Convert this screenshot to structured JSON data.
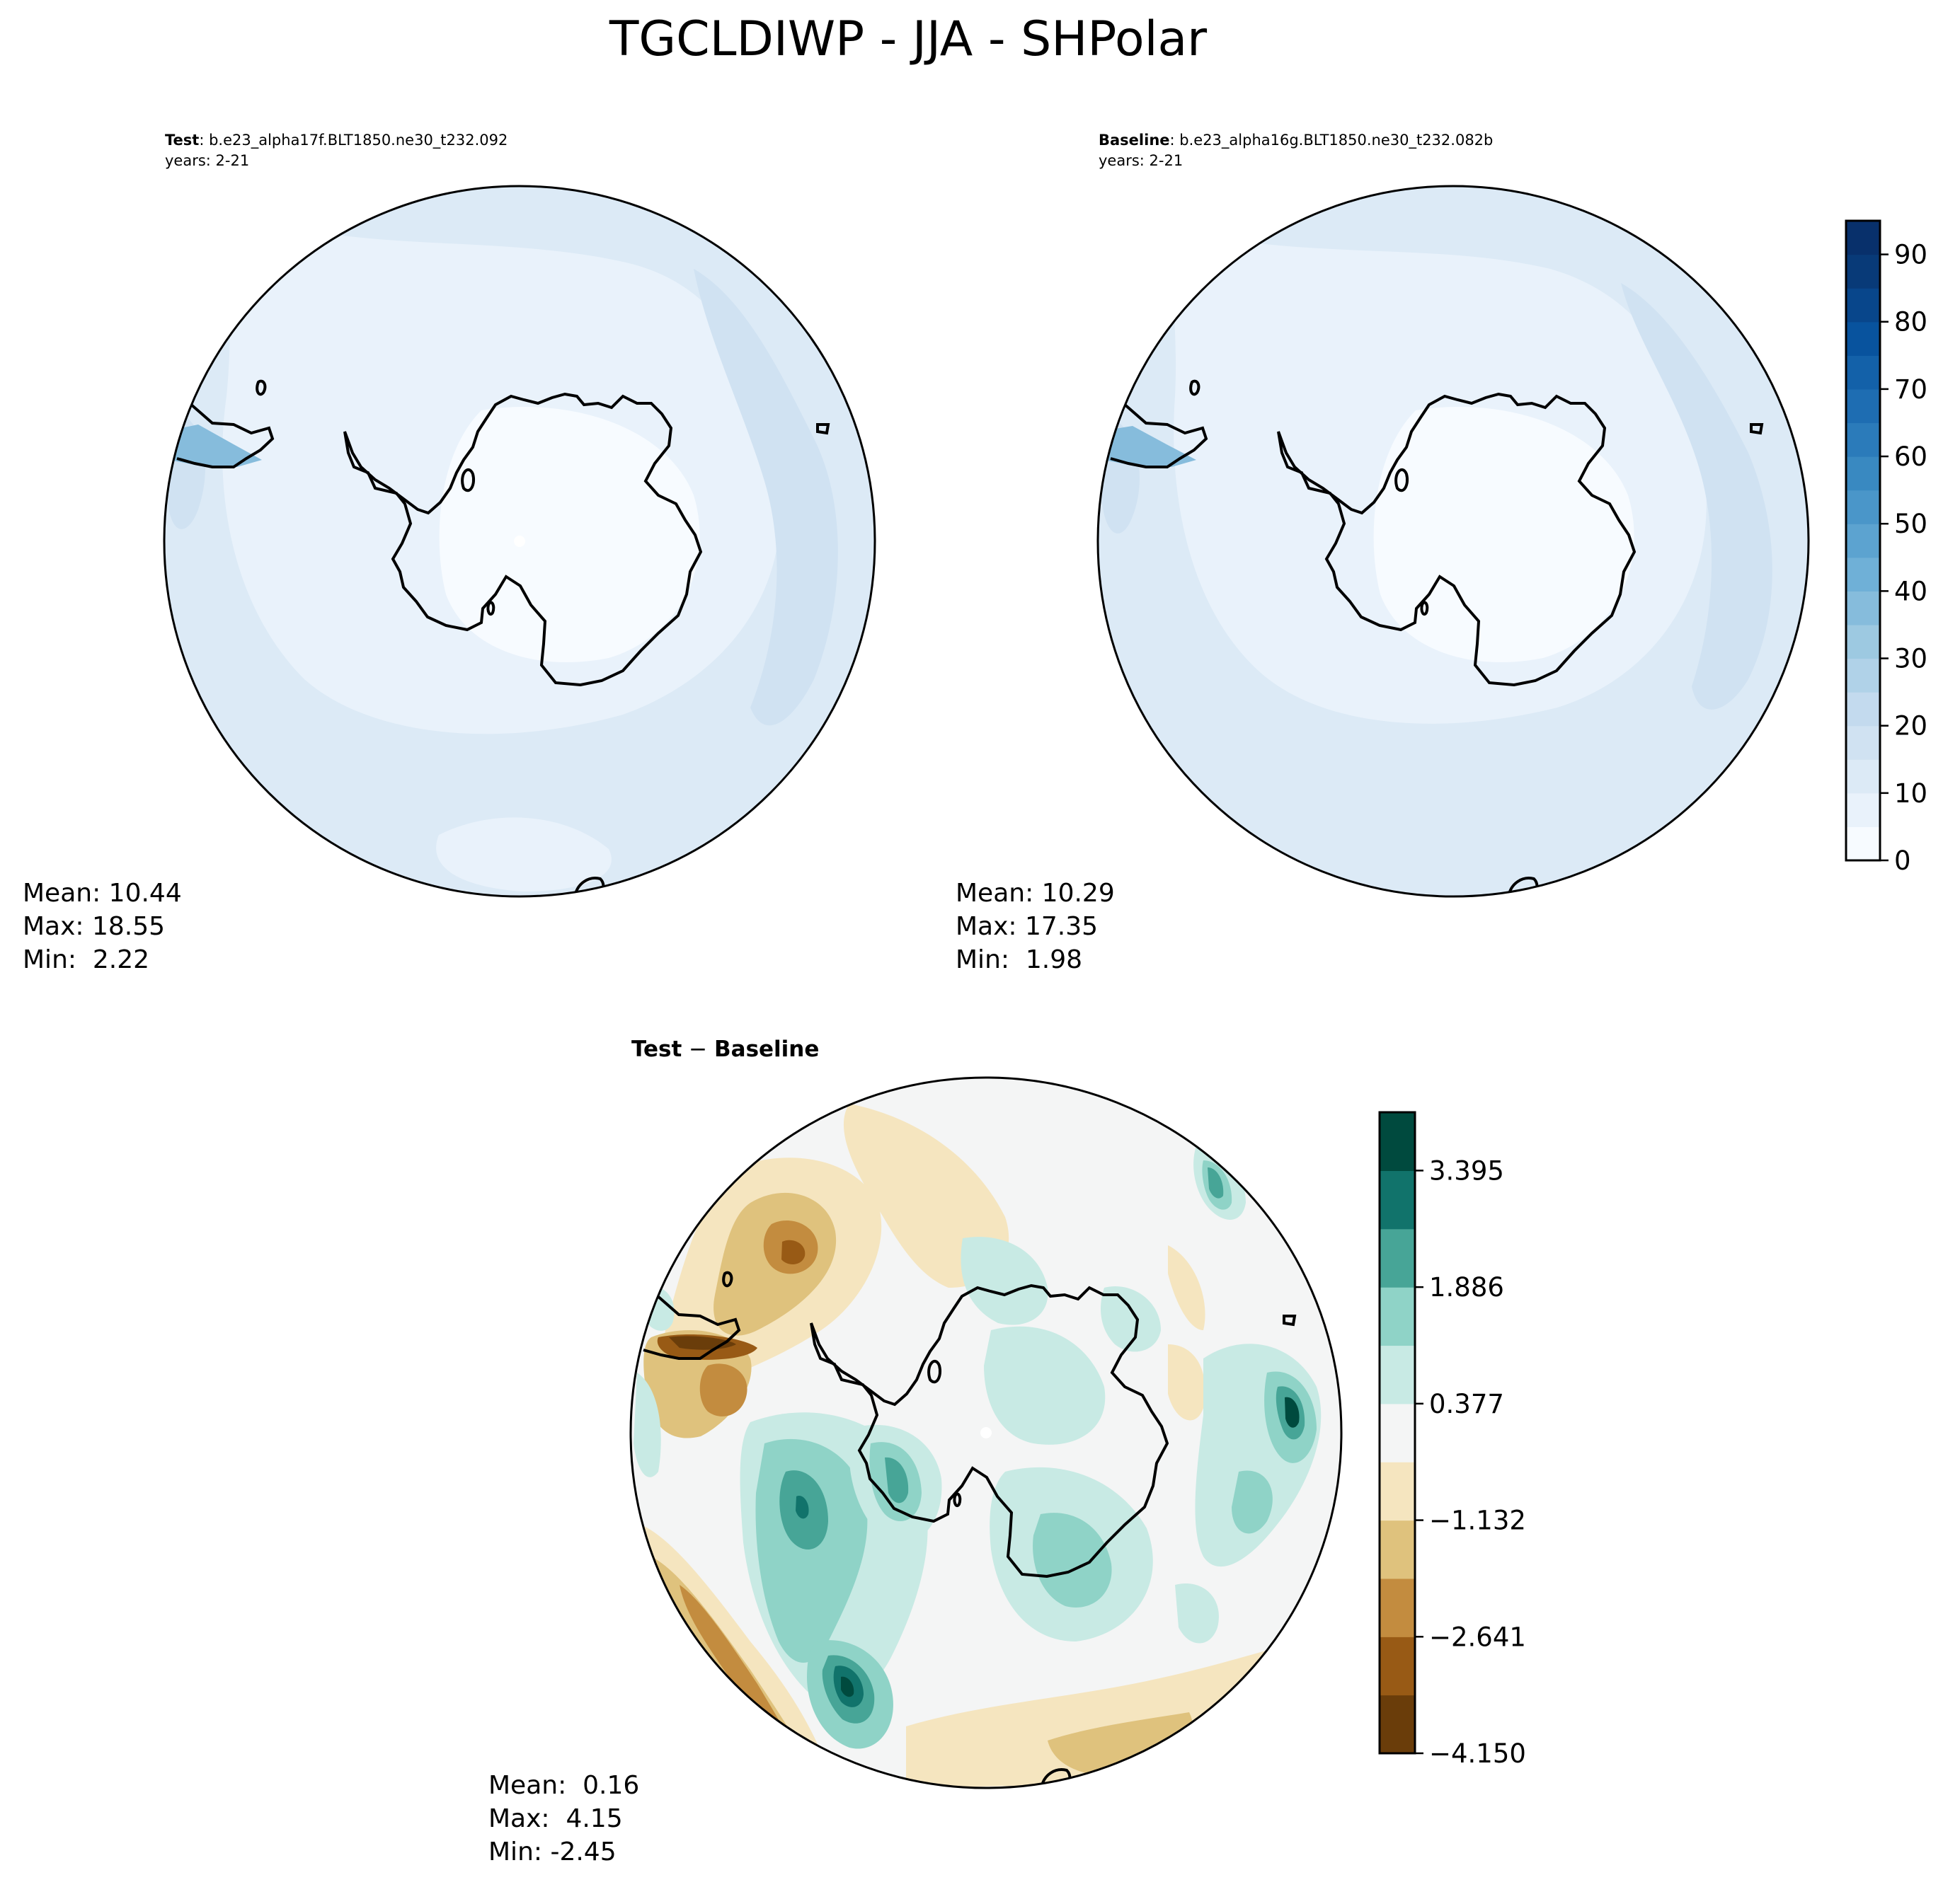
{
  "figure": {
    "title": "TGCLDIWP - JJA - SHPolar"
  },
  "chart_data": [
    {
      "type": "heatmap",
      "panel": "test",
      "title_bold": "Test",
      "title_rest": ": b.e23_alpha17f.BLT1850.ne30_t232.092",
      "years": "years: 2-21",
      "stats": [
        "Mean: 10.44",
        "Max: 18.55",
        "Min:  2.22"
      ],
      "projection": "south-polar-stereographic",
      "colormap": "Blues"
    },
    {
      "type": "heatmap",
      "panel": "baseline",
      "title_bold": "Baseline",
      "title_rest": ": b.e23_alpha16g.BLT1850.ne30_t232.082b",
      "years": "years: 2-21",
      "stats": [
        "Mean: 10.29",
        "Max: 17.35",
        "Min:  1.98"
      ],
      "projection": "south-polar-stereographic",
      "colormap": "Blues"
    },
    {
      "type": "heatmap",
      "panel": "difference",
      "title_bold": "Test",
      "title_sep": " − ",
      "title_bold2": "Baseline",
      "stats": [
        "Mean:  0.16",
        "Max:  4.15",
        "Min: -2.45"
      ],
      "projection": "south-polar-stereographic",
      "colormap": "BrBG"
    }
  ],
  "colorbar_abs": {
    "levels": [
      0,
      5,
      10,
      15,
      20,
      25,
      30,
      35,
      40,
      45,
      50,
      55,
      60,
      65,
      70,
      75,
      80,
      85,
      90,
      95
    ],
    "ticks": [
      0,
      10,
      20,
      30,
      40,
      50,
      60,
      70,
      80,
      90
    ],
    "tick_labels": [
      "0",
      "10",
      "20",
      "30",
      "40",
      "50",
      "60",
      "70",
      "80",
      "90"
    ],
    "colors": [
      "#f7fbff",
      "#e9f2fb",
      "#dceaf6",
      "#d0e2f2",
      "#c3daee",
      "#b0d2e8",
      "#9dc9e1",
      "#86bcdc",
      "#6fb0d7",
      "#5ca3d0",
      "#4a96c9",
      "#3989c1",
      "#2b7bba",
      "#1e6db2",
      "#1361a9",
      "#08539e",
      "#08468b",
      "#083a78",
      "#08306b"
    ]
  },
  "colorbar_diff": {
    "levels": [
      -4.15,
      -3.395,
      -2.641,
      -1.886,
      -1.132,
      -0.377,
      0.377,
      1.132,
      1.886,
      2.641,
      3.395,
      4.15
    ],
    "tick_values": [
      -4.15,
      -2.641,
      -1.132,
      0.377,
      1.886,
      3.395
    ],
    "tick_labels": [
      "−4.150",
      "−2.641",
      "−1.132",
      "0.377",
      "1.886",
      "3.395"
    ],
    "colors": [
      "#6a3d0a",
      "#985a15",
      "#c38c3f",
      "#dfc27d",
      "#f5e5bf",
      "#f4f5f5",
      "#c8eae4",
      "#8fd3c7",
      "#47a597",
      "#11736b",
      "#004a3e"
    ]
  }
}
